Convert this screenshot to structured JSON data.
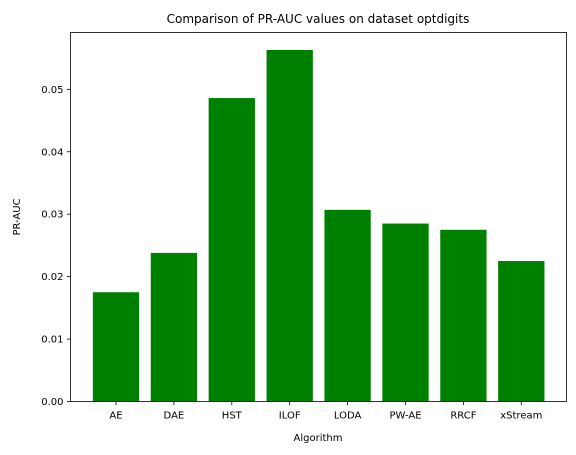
{
  "chart_data": {
    "type": "bar",
    "title": "Comparison of PR-AUC values on dataset optdigits",
    "xlabel": "Algorithm",
    "ylabel": "PR-AUC",
    "categories": [
      "AE",
      "DAE",
      "HST",
      "ILOF",
      "LODA",
      "PW-AE",
      "RRCF",
      "xStream"
    ],
    "values": [
      0.0175,
      0.0238,
      0.0486,
      0.0563,
      0.0307,
      0.0285,
      0.0275,
      0.0225
    ],
    "ylim": [
      0,
      0.0591
    ],
    "yticks": [
      0.0,
      0.01,
      0.02,
      0.03,
      0.04,
      0.05
    ],
    "ytick_labels": [
      "0.00",
      "0.01",
      "0.02",
      "0.03",
      "0.04",
      "0.05"
    ],
    "bar_color": "#008000",
    "grid": false,
    "legend": "none"
  }
}
